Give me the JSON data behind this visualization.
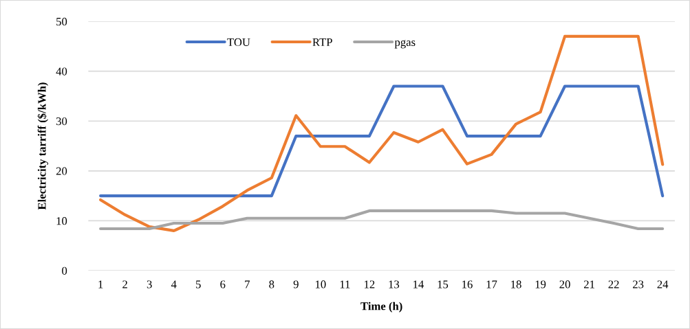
{
  "chart_data": {
    "type": "line",
    "xlabel": "Time (h)",
    "ylabel": "Electricity tarriff ($/kWh)",
    "categories": [
      "1",
      "2",
      "3",
      "4",
      "5",
      "6",
      "7",
      "8",
      "9",
      "10",
      "11",
      "12",
      "13",
      "14",
      "15",
      "16",
      "17",
      "18",
      "19",
      "20",
      "21",
      "22",
      "23",
      "24"
    ],
    "series": [
      {
        "name": "TOU",
        "color": "#4472c4",
        "values": [
          15,
          15,
          15,
          15,
          15,
          15,
          15,
          15,
          27,
          27,
          27,
          27,
          37,
          37,
          37,
          27,
          27,
          27,
          27,
          37,
          37,
          37,
          37,
          15
        ]
      },
      {
        "name": "RTP",
        "color": "#ed7d31",
        "values": [
          14.2,
          11.2,
          8.8,
          8.0,
          10.2,
          12.9,
          16.1,
          18.6,
          31.1,
          24.9,
          24.9,
          21.7,
          27.7,
          25.8,
          28.3,
          21.4,
          23.3,
          29.4,
          31.8,
          47.0,
          47.0,
          47.0,
          47.0,
          21.3
        ]
      },
      {
        "name": "pgas",
        "color": "#a5a5a5",
        "values": [
          8.4,
          8.4,
          8.4,
          9.5,
          9.5,
          9.5,
          10.5,
          10.5,
          10.5,
          10.5,
          10.5,
          12.0,
          12.0,
          12.0,
          12.0,
          12.0,
          12.0,
          11.5,
          11.5,
          11.5,
          10.5,
          9.5,
          8.4,
          8.4
        ]
      }
    ],
    "ylim": [
      0,
      50
    ],
    "yticks": [
      0,
      10,
      20,
      30,
      40,
      50
    ],
    "grid": "y",
    "legend": "top",
    "line_style": "solid"
  }
}
